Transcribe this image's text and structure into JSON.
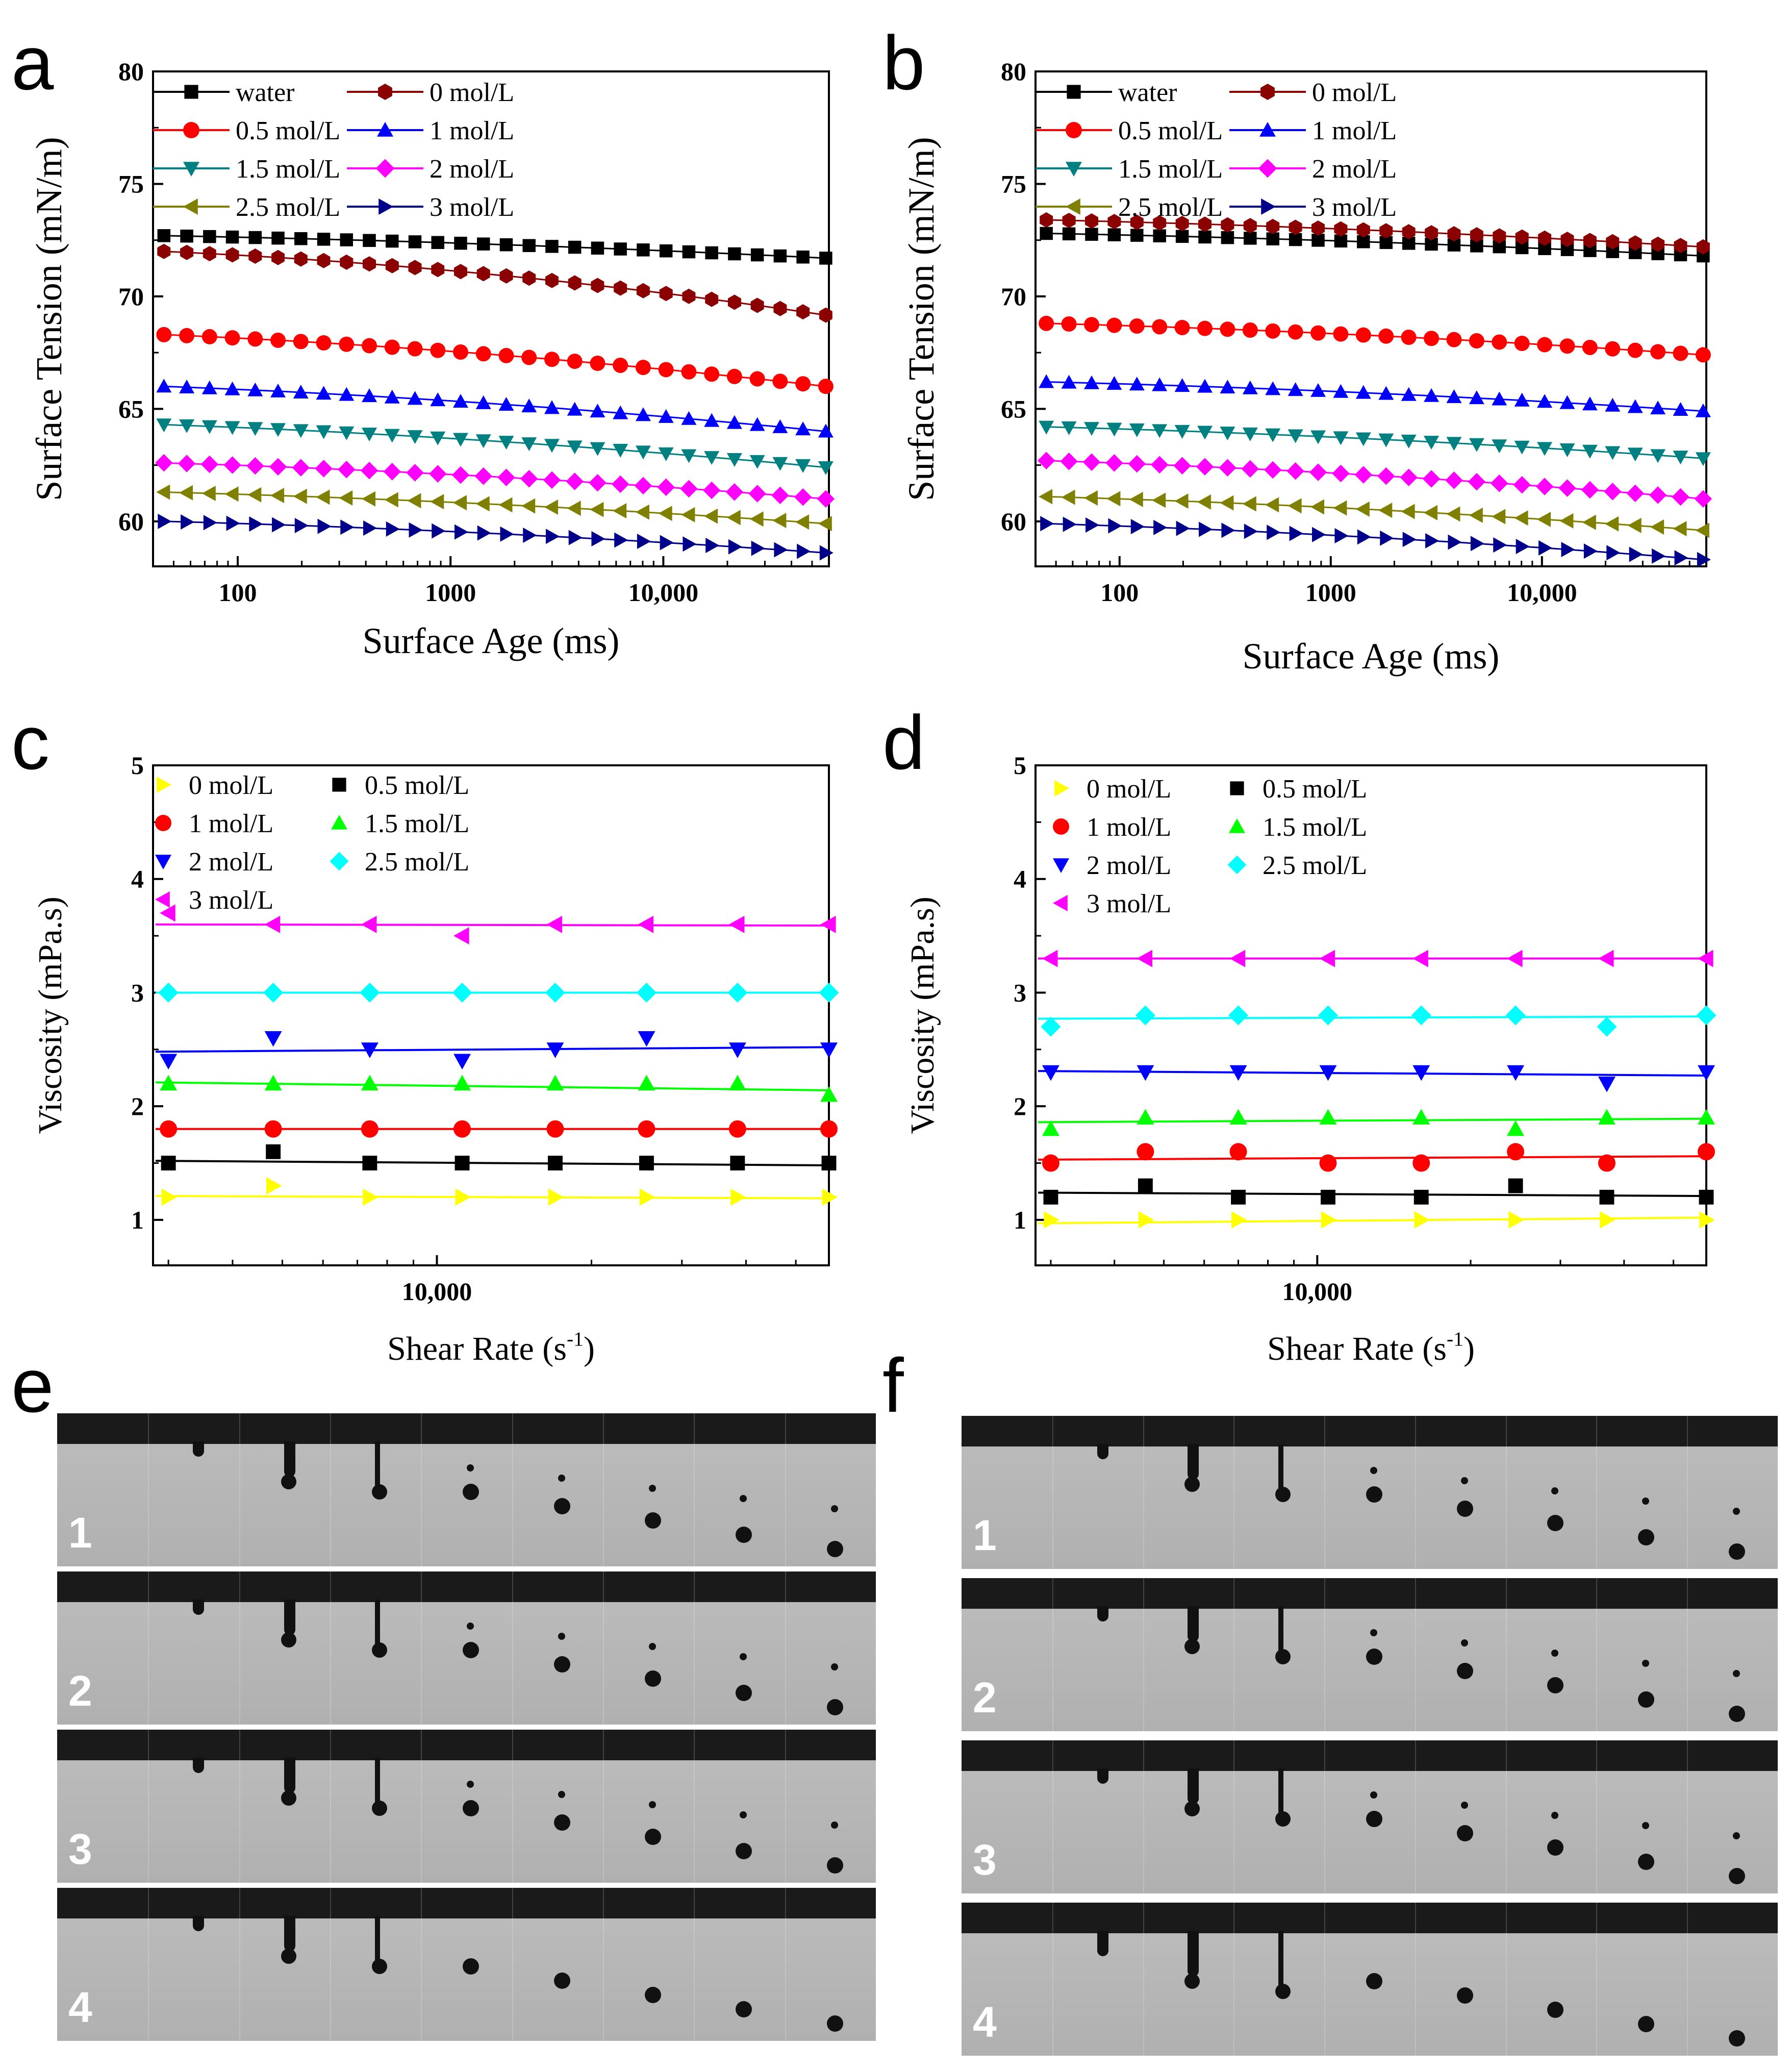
{
  "panels": {
    "a": {
      "letter": "a"
    },
    "b": {
      "letter": "b"
    },
    "c": {
      "letter": "c"
    },
    "d": {
      "letter": "d"
    },
    "e": {
      "letter": "e"
    },
    "f": {
      "letter": "f"
    }
  },
  "image_strips": {
    "e": {
      "rows": [
        "1",
        "2",
        "3",
        "4"
      ]
    },
    "f": {
      "rows": [
        "1",
        "2",
        "3",
        "4"
      ]
    }
  },
  "chart_data": [
    {
      "id": "a",
      "type": "line",
      "xscale": "log",
      "xlabel": "Surface Age (ms)",
      "ylabel": "Surface Tension (mN/m)",
      "xlim": [
        40,
        60000
      ],
      "ylim": [
        58,
        80
      ],
      "xticks": [
        100,
        1000,
        10000
      ],
      "xtick_labels": [
        "100",
        "1000",
        "10,000"
      ],
      "yticks": [
        60,
        65,
        70,
        75,
        80
      ],
      "ytick_labels": [
        "60",
        "65",
        "70",
        "75",
        "80"
      ],
      "legend_cols": 2,
      "legend_location": "top-left",
      "series": [
        {
          "name": "water",
          "color": "#000000",
          "marker": "square",
          "start": 72.7,
          "end": 71.7
        },
        {
          "name": "0 mol/L",
          "color": "#8b0000",
          "marker": "hexagon",
          "start": 72.0,
          "end": 69.6
        },
        {
          "name": "0.5 mol/L",
          "color": "#ff0000",
          "marker": "circle",
          "start": 68.3,
          "end": 66.0
        },
        {
          "name": "1 mol/L",
          "color": "#0000ff",
          "marker": "triangle-up",
          "start": 66.0,
          "end": 64.0
        },
        {
          "name": "1.5 mol/L",
          "color": "#008080",
          "marker": "triangle-down",
          "start": 64.3,
          "end": 62.4
        },
        {
          "name": "2 mol/L",
          "color": "#ff00ff",
          "marker": "diamond",
          "start": 62.6,
          "end": 61.0
        },
        {
          "name": "2.5 mol/L",
          "color": "#808000",
          "marker": "triangle-left",
          "start": 61.3,
          "end": 59.9
        },
        {
          "name": "3 mol/L",
          "color": "#00008b",
          "marker": "triangle-right",
          "start": 60.0,
          "end": 58.6
        }
      ]
    },
    {
      "id": "b",
      "type": "line",
      "xscale": "log",
      "xlabel": "Surface Age (ms)",
      "ylabel": "Surface Tension (mN/m)",
      "xlim": [
        40,
        60000
      ],
      "ylim": [
        58,
        80
      ],
      "xticks": [
        100,
        1000,
        10000
      ],
      "xtick_labels": [
        "100",
        "1000",
        "10,000"
      ],
      "yticks": [
        60,
        65,
        70,
        75,
        80
      ],
      "ytick_labels": [
        "60",
        "65",
        "70",
        "75",
        "80"
      ],
      "legend_cols": 2,
      "legend_location": "top-left",
      "series": [
        {
          "name": "water",
          "color": "#000000",
          "marker": "square",
          "start": 72.8,
          "end": 71.8
        },
        {
          "name": "0 mol/L",
          "color": "#8b0000",
          "marker": "hexagon",
          "start": 73.4,
          "end": 72.2
        },
        {
          "name": "0.5 mol/L",
          "color": "#ff0000",
          "marker": "circle",
          "start": 68.8,
          "end": 67.4
        },
        {
          "name": "1 mol/L",
          "color": "#0000ff",
          "marker": "triangle-up",
          "start": 66.2,
          "end": 64.9
        },
        {
          "name": "1.5 mol/L",
          "color": "#008080",
          "marker": "triangle-down",
          "start": 64.2,
          "end": 62.8
        },
        {
          "name": "2 mol/L",
          "color": "#ff00ff",
          "marker": "diamond",
          "start": 62.7,
          "end": 61.0
        },
        {
          "name": "2.5 mol/L",
          "color": "#808000",
          "marker": "triangle-left",
          "start": 61.1,
          "end": 59.6
        },
        {
          "name": "3 mol/L",
          "color": "#00008b",
          "marker": "triangle-right",
          "start": 59.9,
          "end": 58.3
        }
      ]
    },
    {
      "id": "c",
      "type": "scatter",
      "xscale": "log",
      "xlabel": "Shear Rate (s",
      "xlabel_sup": "-1",
      "xlabel_tail": ")",
      "ylabel": "Viscosity (mPa.s)",
      "xlim": [
        2800,
        58000
      ],
      "ylim": [
        0.6,
        5
      ],
      "xticks": [
        10000
      ],
      "xtick_labels": [
        "10,000"
      ],
      "yticks": [
        1,
        2,
        3,
        4,
        5
      ],
      "ytick_labels": [
        "1",
        "2",
        "3",
        "4",
        "5"
      ],
      "x": [
        3000,
        4800,
        7400,
        11200,
        17000,
        25600,
        38500,
        58000
      ],
      "legend_cols": 2,
      "legend_location": "top-left",
      "series": [
        {
          "name": "0 mol/L",
          "color": "#ffff00",
          "marker": "triangle-right",
          "values": [
            1.2,
            1.3,
            1.2,
            1.2,
            1.2,
            1.2,
            1.2,
            1.2
          ],
          "fit": [
            1.21,
            1.19
          ]
        },
        {
          "name": "0.5 mol/L",
          "color": "#000000",
          "marker": "square",
          "values": [
            1.5,
            1.6,
            1.5,
            1.5,
            1.5,
            1.5,
            1.5,
            1.5
          ],
          "fit": [
            1.52,
            1.48
          ]
        },
        {
          "name": "1 mol/L",
          "color": "#ff0000",
          "marker": "circle",
          "values": [
            1.8,
            1.8,
            1.8,
            1.8,
            1.8,
            1.8,
            1.8,
            1.8
          ],
          "fit": [
            1.8,
            1.8
          ]
        },
        {
          "name": "1.5 mol/L",
          "color": "#00ff00",
          "marker": "triangle-up",
          "values": [
            2.2,
            2.2,
            2.2,
            2.2,
            2.2,
            2.2,
            2.2,
            2.1
          ],
          "fit": [
            2.21,
            2.14
          ]
        },
        {
          "name": "2 mol/L",
          "color": "#0000ff",
          "marker": "triangle-down",
          "values": [
            2.4,
            2.6,
            2.5,
            2.4,
            2.5,
            2.6,
            2.5,
            2.5
          ],
          "fit": [
            2.48,
            2.52
          ]
        },
        {
          "name": "2.5 mol/L",
          "color": "#00ffff",
          "marker": "diamond",
          "values": [
            3.0,
            3.0,
            3.0,
            3.0,
            3.0,
            3.0,
            3.0,
            3.0
          ],
          "fit": [
            3.0,
            3.0
          ]
        },
        {
          "name": "3 mol/L",
          "color": "#ff00ff",
          "marker": "triangle-left",
          "values": [
            3.7,
            3.6,
            3.6,
            3.5,
            3.6,
            3.6,
            3.6,
            3.6
          ],
          "fit": [
            3.6,
            3.59
          ]
        }
      ]
    },
    {
      "id": "d",
      "type": "scatter",
      "xscale": "log",
      "xlabel": "Shear Rate (s",
      "xlabel_sup": "-1",
      "xlabel_tail": ")",
      "ylabel": "Viscosity (mPa.s)",
      "xlim": [
        2800,
        58000
      ],
      "ylim": [
        0.6,
        5
      ],
      "xticks": [
        10000
      ],
      "xtick_labels": [
        "10,000"
      ],
      "yticks": [
        1,
        2,
        3,
        4,
        5
      ],
      "ytick_labels": [
        "1",
        "2",
        "3",
        "4",
        "5"
      ],
      "x": [
        3000,
        4600,
        7000,
        10500,
        16000,
        24500,
        37000,
        58000
      ],
      "legend_cols": 2,
      "legend_location": "top-left",
      "series": [
        {
          "name": "0 mol/L",
          "color": "#ffff00",
          "marker": "triangle-right",
          "values": [
            1.0,
            1.0,
            1.0,
            1.0,
            1.0,
            1.0,
            1.0,
            1.0
          ],
          "fit": [
            0.97,
            1.02
          ]
        },
        {
          "name": "0.5 mol/L",
          "color": "#000000",
          "marker": "square",
          "values": [
            1.2,
            1.3,
            1.2,
            1.2,
            1.2,
            1.3,
            1.2,
            1.2
          ],
          "fit": [
            1.24,
            1.21
          ]
        },
        {
          "name": "1 mol/L",
          "color": "#ff0000",
          "marker": "circle",
          "values": [
            1.5,
            1.6,
            1.6,
            1.5,
            1.5,
            1.6,
            1.5,
            1.6
          ],
          "fit": [
            1.53,
            1.56
          ]
        },
        {
          "name": "1.5 mol/L",
          "color": "#00ff00",
          "marker": "triangle-up",
          "values": [
            1.8,
            1.9,
            1.9,
            1.9,
            1.9,
            1.8,
            1.9,
            1.9
          ],
          "fit": [
            1.86,
            1.89
          ]
        },
        {
          "name": "2 mol/L",
          "color": "#0000ff",
          "marker": "triangle-down",
          "values": [
            2.3,
            2.3,
            2.3,
            2.3,
            2.3,
            2.3,
            2.2,
            2.3
          ],
          "fit": [
            2.31,
            2.27
          ]
        },
        {
          "name": "2.5 mol/L",
          "color": "#00ffff",
          "marker": "diamond",
          "values": [
            2.7,
            2.8,
            2.8,
            2.8,
            2.8,
            2.8,
            2.7,
            2.8
          ],
          "fit": [
            2.77,
            2.79
          ]
        },
        {
          "name": "3 mol/L",
          "color": "#ff00ff",
          "marker": "triangle-left",
          "values": [
            3.3,
            3.3,
            3.3,
            3.3,
            3.3,
            3.3,
            3.3,
            3.3
          ],
          "fit": [
            3.3,
            3.3
          ]
        }
      ]
    }
  ]
}
